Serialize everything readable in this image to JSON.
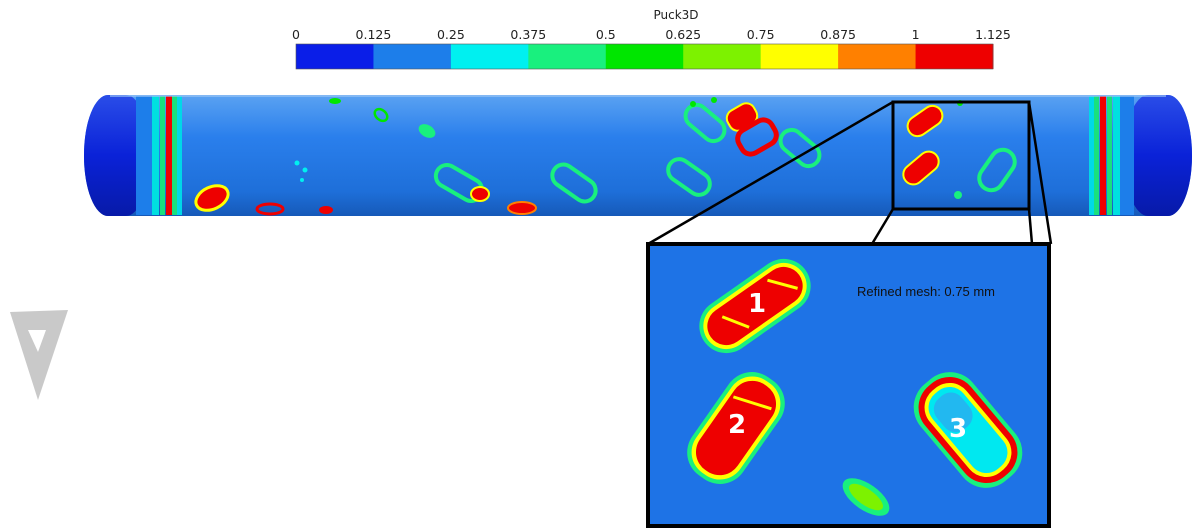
{
  "legend": {
    "title": "Puck3D",
    "ticks": [
      "0",
      "0.125",
      "0.25",
      "0.375",
      "0.5",
      "0.625",
      "0.75",
      "0.875",
      "1",
      "1.125"
    ],
    "bands": [
      {
        "from": 0,
        "to": 0.125,
        "color": "#0a1ee8"
      },
      {
        "from": 0.125,
        "to": 0.25,
        "color": "#1d7eea"
      },
      {
        "from": 0.25,
        "to": 0.375,
        "color": "#00f0f0"
      },
      {
        "from": 0.375,
        "to": 0.5,
        "color": "#19f07e"
      },
      {
        "from": 0.5,
        "to": 0.625,
        "color": "#00e600"
      },
      {
        "from": 0.625,
        "to": 0.75,
        "color": "#7df200"
      },
      {
        "from": 0.75,
        "to": 0.875,
        "color": "#ffff00"
      },
      {
        "from": 0.875,
        "to": 1,
        "color": "#ff8000"
      },
      {
        "from": 1,
        "to": 1.125,
        "color": "#ee0000"
      }
    ]
  },
  "inset": {
    "note": "Refined mesh: 0.75 mm",
    "markers": [
      "1",
      "2",
      "3"
    ]
  },
  "colors": {
    "background": "#1e73e6",
    "frame": "#000000"
  }
}
